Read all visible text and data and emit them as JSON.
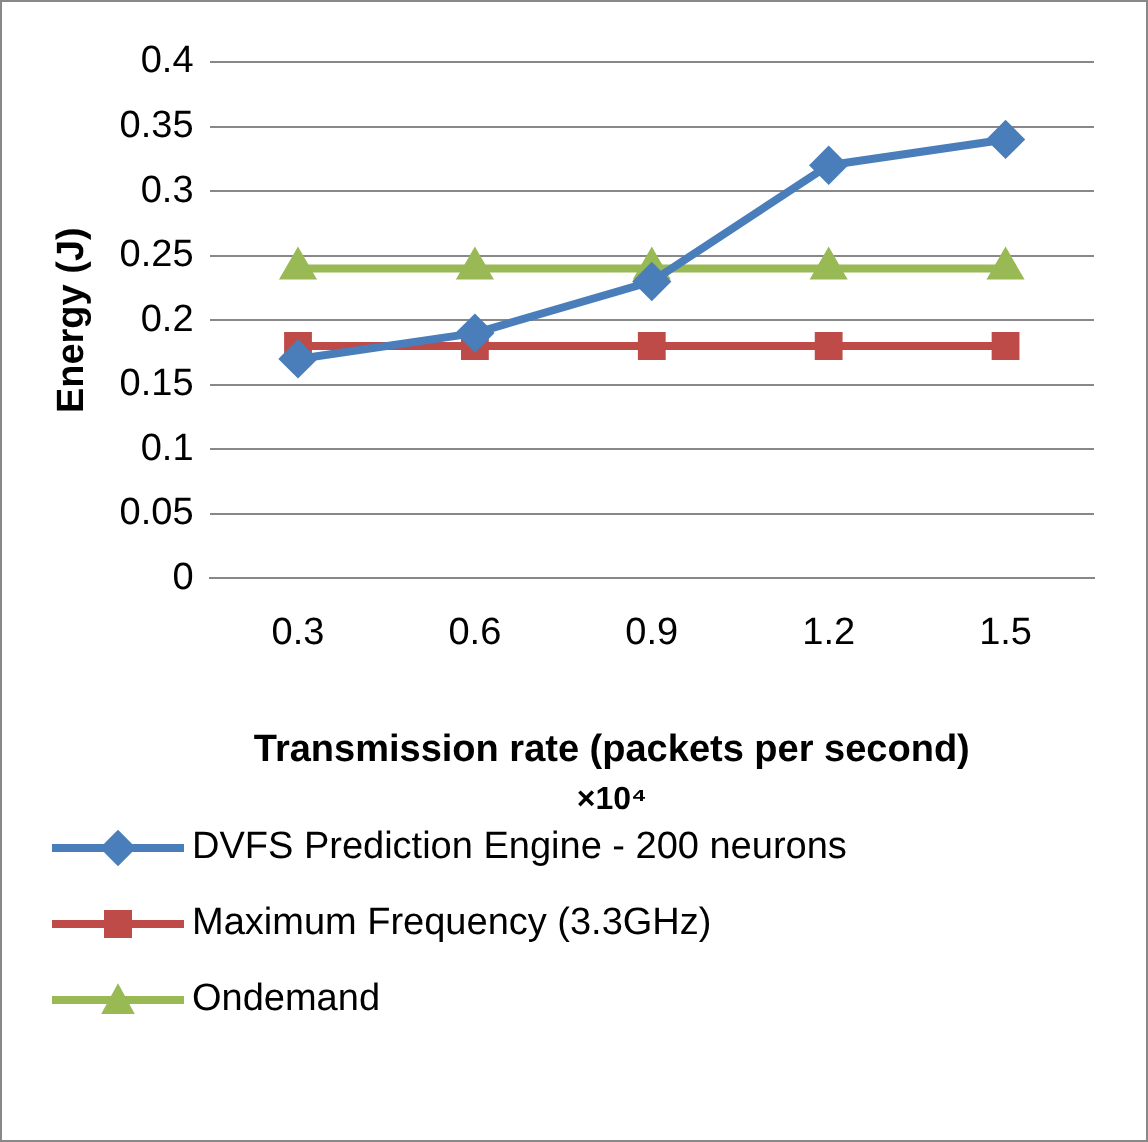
{
  "chart_data": {
    "type": "line",
    "xlabel": "Transmission rate (packets per second)",
    "ylabel": "Energy (J)",
    "annotations": [
      "×10⁴"
    ],
    "categories": [
      "0.3",
      "0.6",
      "0.9",
      "1.2",
      "1.5"
    ],
    "ylim": [
      0,
      0.4
    ],
    "yticks": [
      0,
      0.05,
      0.1,
      0.15,
      0.2,
      0.25,
      0.3,
      0.35,
      0.4
    ],
    "grid": "y",
    "legend": "bottom",
    "line_style": "solid",
    "series": [
      {
        "name": "DVFS Prediction Engine - 200 neurons",
        "color": "#4a7ebb",
        "marker": "diamond",
        "values": [
          0.17,
          0.19,
          0.23,
          0.32,
          0.34
        ]
      },
      {
        "name": "Maximum Frequency (3.3GHz)",
        "color": "#be4b48",
        "marker": "square",
        "values": [
          0.18,
          0.18,
          0.18,
          0.18,
          0.18
        ]
      },
      {
        "name": "Ondemand",
        "color": "#98b954",
        "marker": "triangle",
        "values": [
          0.24,
          0.24,
          0.24,
          0.24,
          0.24
        ]
      }
    ]
  }
}
